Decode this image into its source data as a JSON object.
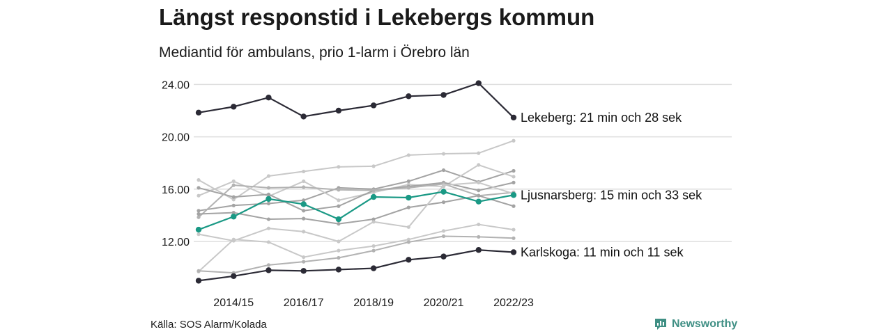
{
  "title": "Längst responstid i Lekebergs kommun",
  "subtitle": "Mediantid för ambulans, prio 1-larm i Örebro län",
  "source": "Källa: SOS Alarm/Kolada",
  "logo": {
    "text": "Newsworthy",
    "icon": "newsworthy-logo-icon",
    "color": "#3f8f84"
  },
  "chart_data": {
    "type": "line",
    "x": [
      "2013/14",
      "2014/15",
      "2015/16",
      "2016/17",
      "2017/18",
      "2018/19",
      "2019/20",
      "2020/21",
      "2021/22",
      "2022/23"
    ],
    "x_tick_labels": [
      "2014/15",
      "2016/17",
      "2018/19",
      "2020/21",
      "2022/23"
    ],
    "y_ticks": [
      12.0,
      16.0,
      20.0,
      24.0
    ],
    "y_tick_labels": [
      "12.00",
      "16.00",
      "20.00",
      "24.00"
    ],
    "ylim": [
      9.0,
      25.0
    ],
    "grid": true,
    "colors": {
      "highlight_dark": "#2b2a35",
      "highlight_teal": "#1a9985",
      "background_lines": [
        "#c8c8c8",
        "#b2b2b2",
        "#a3a3a3"
      ]
    },
    "series": [
      {
        "name": "Lekeberg",
        "label": "Lekeberg: 21 min och 28 sek",
        "color": "#2b2a35",
        "highlight": true,
        "values": [
          21.85,
          22.3,
          23.0,
          21.55,
          22.0,
          22.4,
          23.1,
          23.2,
          24.1,
          21.47
        ]
      },
      {
        "name": "Ljusnarsberg",
        "label": "Ljusnarsberg: 15 min och 33 sek",
        "color": "#1a9985",
        "highlight": true,
        "values": [
          12.9,
          13.9,
          15.25,
          14.85,
          13.7,
          15.4,
          15.35,
          15.8,
          15.05,
          15.55
        ]
      },
      {
        "name": "Karlskoga",
        "label": "Karlskoga: 11 min och 11 sek",
        "color": "#2b2a35",
        "highlight": true,
        "values": [
          9.0,
          9.35,
          9.8,
          9.75,
          9.85,
          9.95,
          10.6,
          10.85,
          11.35,
          11.18
        ]
      },
      {
        "color": "#c8c8c8",
        "values": [
          16.7,
          15.2,
          17.0,
          17.35,
          17.7,
          17.75,
          18.6,
          18.7,
          18.75,
          19.7
        ]
      },
      {
        "color": "#a3a3a3",
        "values": [
          14.35,
          14.75,
          14.9,
          15.15,
          16.1,
          16.0,
          16.6,
          17.45,
          16.55,
          17.4
        ]
      },
      {
        "color": "#c8c8c8",
        "values": [
          15.5,
          16.6,
          15.45,
          16.6,
          15.15,
          15.75,
          16.35,
          16.2,
          17.85,
          16.95
        ]
      },
      {
        "color": "#a3a3a3",
        "values": [
          16.1,
          15.4,
          15.6,
          14.35,
          14.7,
          15.9,
          16.2,
          16.5,
          15.9,
          16.5
        ]
      },
      {
        "color": "#b2b2b2",
        "values": [
          13.85,
          16.3,
          16.1,
          16.15,
          15.95,
          15.9,
          16.1,
          16.4,
          15.5,
          15.75
        ]
      },
      {
        "color": "#a3a3a3",
        "values": [
          14.1,
          14.2,
          13.7,
          13.75,
          13.35,
          13.7,
          14.6,
          15.0,
          15.5,
          14.7
        ]
      },
      {
        "color": "#c8c8c8",
        "values": [
          12.55,
          12.05,
          13.0,
          12.75,
          12.0,
          13.5,
          13.1,
          16.3,
          16.5,
          15.65
        ]
      },
      {
        "color": "#c8c8c8",
        "values": [
          9.7,
          12.15,
          11.95,
          10.8,
          11.3,
          11.65,
          12.15,
          12.8,
          13.3,
          12.9
        ]
      },
      {
        "color": "#b2b2b2",
        "values": [
          9.75,
          9.6,
          10.2,
          10.45,
          10.75,
          11.3,
          11.95,
          12.4,
          12.35,
          12.25
        ]
      }
    ]
  }
}
